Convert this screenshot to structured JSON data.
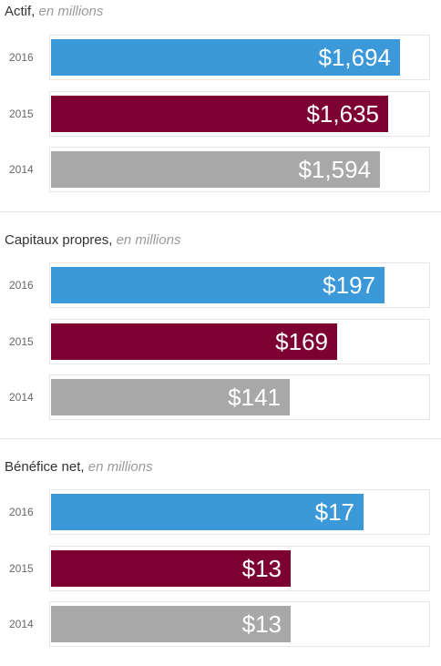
{
  "colors": {
    "2016": "#3b98d9",
    "2015": "#7d0033",
    "2014": "#a8a8a8"
  },
  "chart_data": [
    {
      "type": "bar",
      "orientation": "horizontal",
      "title": "Actif,",
      "unit": "en millions",
      "categories": [
        "2016",
        "2015",
        "2014"
      ],
      "values": [
        1694,
        1635,
        1594
      ],
      "labels": [
        "$1,694",
        "$1,635",
        "$1,594"
      ],
      "xlim": [
        0,
        1830
      ]
    },
    {
      "type": "bar",
      "orientation": "horizontal",
      "title": "Capitaux propres,",
      "unit": "en millions",
      "categories": [
        "2016",
        "2015",
        "2014"
      ],
      "values": [
        197,
        169,
        141
      ],
      "labels": [
        "$197",
        "$169",
        "$141"
      ],
      "xlim": [
        0,
        223
      ]
    },
    {
      "type": "bar",
      "orientation": "horizontal",
      "title": "Bénéfice net,",
      "unit": "en millions",
      "categories": [
        "2016",
        "2015",
        "2014"
      ],
      "values": [
        17,
        13,
        13
      ],
      "labels": [
        "$17",
        "$13",
        "$13"
      ],
      "xlim": [
        0,
        20.5
      ]
    }
  ]
}
